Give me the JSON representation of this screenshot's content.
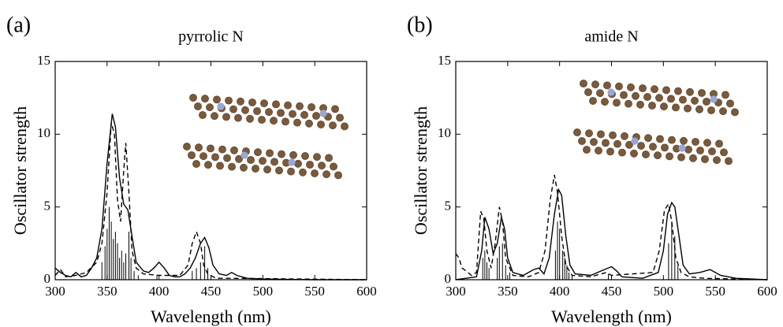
{
  "chart_data": [
    {
      "type": "line",
      "panel": "(a)",
      "title": "pyrrolic N",
      "xlabel": "Wavelength (nm)",
      "ylabel": "Oscillator strength",
      "xlim": [
        300,
        600
      ],
      "ylim": [
        0,
        15
      ],
      "xticks": [
        300,
        350,
        400,
        450,
        500,
        550,
        600
      ],
      "yticks": [
        0,
        5,
        10,
        15
      ],
      "series": [
        {
          "color": "#000000",
          "dash": false,
          "x": [
            300,
            305,
            310,
            315,
            320,
            325,
            330,
            335,
            340,
            345,
            350,
            355,
            358,
            362,
            366,
            370,
            374,
            378,
            385,
            390,
            395,
            400,
            405,
            410,
            415,
            420,
            425,
            430,
            435,
            440,
            444,
            448,
            452,
            458,
            465,
            470,
            475,
            485,
            500,
            550,
            600
          ],
          "values": [
            0.8,
            0.5,
            0.3,
            0.2,
            0.5,
            0.2,
            0.3,
            0.8,
            1.5,
            3.5,
            8,
            11.4,
            10.5,
            7,
            5.2,
            4.8,
            3,
            1.2,
            0.6,
            0.5,
            0.8,
            1.2,
            0.8,
            0.3,
            0.2,
            0.2,
            0.4,
            0.8,
            1.5,
            2.5,
            2.9,
            2.2,
            1,
            0.4,
            0.3,
            0.5,
            0.3,
            0.1,
            0.05,
            0,
            0
          ]
        },
        {
          "color": "#000000",
          "dash": true,
          "x": [
            300,
            305,
            310,
            320,
            330,
            340,
            345,
            350,
            354,
            357,
            360,
            363,
            366,
            368,
            371,
            374,
            378,
            385,
            400,
            420,
            428,
            432,
            436,
            440,
            443,
            447,
            455,
            470,
            600
          ],
          "values": [
            0.3,
            0.7,
            0.2,
            0.3,
            0.5,
            1.2,
            2.5,
            6,
            10.8,
            10,
            5.5,
            4,
            7.5,
            9.4,
            6,
            2,
            0.8,
            0.4,
            0.3,
            0.3,
            1,
            2.5,
            3.3,
            2.5,
            1,
            0.4,
            0.1,
            0.1,
            0
          ]
        }
      ],
      "sticks": {
        "color": "#000000",
        "x": [
          345,
          348,
          350,
          352,
          354,
          356,
          358,
          360,
          362,
          364,
          366,
          368,
          371,
          373,
          376,
          380,
          398,
          432,
          436,
          440,
          444,
          447,
          450
        ],
        "values": [
          1.2,
          2.3,
          3.5,
          5,
          4,
          2.8,
          3.3,
          2.5,
          1.5,
          2,
          1.2,
          1.8,
          3.3,
          1.5,
          0.6,
          0.3,
          0.3,
          0.6,
          0.8,
          1.2,
          2.3,
          0.8,
          0.3
        ]
      }
    },
    {
      "type": "line",
      "panel": "(b)",
      "title": "amide N",
      "xlabel": "Wavelength (nm)",
      "ylabel": "Oscillator strength",
      "xlim": [
        300,
        600
      ],
      "ylim": [
        0,
        15
      ],
      "xticks": [
        300,
        350,
        400,
        450,
        500,
        550,
        600
      ],
      "yticks": [
        0,
        5,
        10,
        15
      ],
      "series": [
        {
          "color": "#000000",
          "dash": false,
          "x": [
            300,
            320,
            325,
            328,
            332,
            336,
            340,
            344,
            347,
            350,
            355,
            365,
            375,
            380,
            385,
            390,
            395,
            399,
            402,
            406,
            410,
            415,
            430,
            440,
            450,
            455,
            460,
            480,
            495,
            500,
            504,
            508,
            511,
            515,
            519,
            525,
            535,
            545,
            555,
            570,
            600
          ],
          "values": [
            0,
            0.2,
            2,
            4.3,
            3.5,
            1.8,
            2.5,
            4.3,
            3.5,
            1.5,
            0.5,
            0.3,
            0.7,
            0.8,
            0.4,
            1.5,
            4.5,
            6.2,
            5.8,
            3,
            1,
            0.4,
            0.3,
            0.6,
            0.9,
            0.6,
            0.2,
            0.1,
            0.5,
            2,
            4.5,
            5.3,
            5,
            3,
            1,
            0.4,
            0.5,
            0.7,
            0.3,
            0.1,
            0
          ]
        },
        {
          "color": "#000000",
          "dash": true,
          "x": [
            300,
            303,
            306,
            310,
            315,
            320,
            324,
            327,
            330,
            334,
            338,
            342,
            345,
            348,
            355,
            370,
            380,
            386,
            391,
            395,
            398,
            402,
            406,
            412,
            430,
            445,
            450,
            490,
            496,
            501,
            505,
            508,
            512,
            517,
            525,
            540,
            600
          ],
          "values": [
            1.8,
            1.5,
            0.8,
            0.6,
            0.3,
            0.5,
            4.7,
            4.2,
            2,
            0.8,
            2.5,
            5,
            4,
            1.5,
            0.3,
            0.2,
            0.5,
            2,
            5.5,
            7.2,
            6,
            3,
            1,
            0.3,
            0.2,
            0.5,
            0.3,
            0.5,
            2,
            4.8,
            5.2,
            4,
            1.5,
            0.5,
            0.2,
            0.1,
            0
          ]
        }
      ],
      "sticks": {
        "color": "#000000",
        "x": [
          326,
          328,
          330,
          332,
          340,
          342,
          345,
          348,
          352,
          396,
          398,
          400,
          403,
          405,
          407,
          409,
          412,
          447,
          505,
          508,
          511,
          514
        ],
        "values": [
          1.5,
          2,
          1.2,
          0.8,
          1.5,
          2.3,
          2.5,
          1,
          0.5,
          2,
          4,
          3.5,
          2,
          1.5,
          1,
          0.5,
          0.3,
          0.4,
          2.5,
          4,
          3,
          1
        ]
      }
    }
  ]
}
